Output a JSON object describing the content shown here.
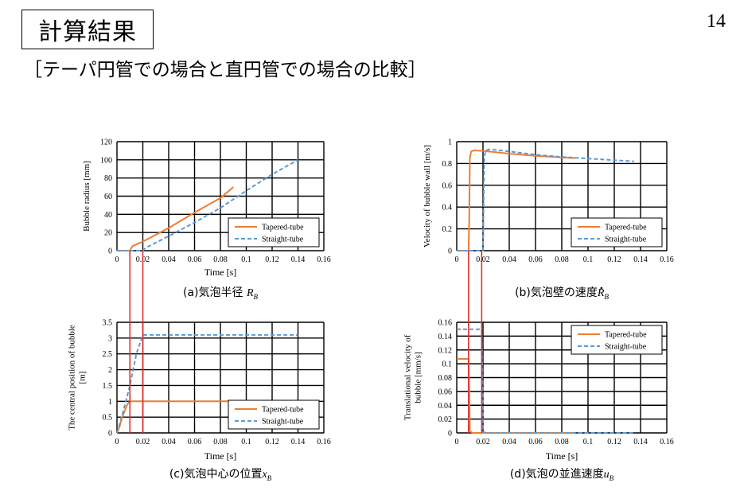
{
  "slide": {
    "title": "計算結果",
    "subtitle": "［テーパ円管での場合と直円管での場合の比較］",
    "page_number": "14"
  },
  "colors": {
    "tapered": "#ED7D31",
    "straight": "#5B9BD5",
    "connector": "#E03030",
    "grid": "#000000"
  },
  "chart_data": [
    {
      "id": "a",
      "type": "line",
      "caption": "(a)気泡半径 ",
      "caption_sym": "R",
      "caption_sub": "B",
      "caption_dot": false,
      "xlabel": "Time [s]",
      "ylabel": [
        "Bubble radius [mm]"
      ],
      "xlim": [
        0,
        0.16
      ],
      "ylim": [
        0,
        120
      ],
      "xticks": [
        "0",
        "0.02",
        "0.04",
        "0.06",
        "0.08",
        "0.1",
        "0.12",
        "0.14",
        "0.16"
      ],
      "yticks": [
        "0",
        "20",
        "40",
        "60",
        "80",
        "100",
        "120"
      ],
      "legend_pos": "bottom-right",
      "series": [
        {
          "name": "Tapered-tube",
          "style": "solid",
          "x": [
            0,
            0.01,
            0.011,
            0.012,
            0.02,
            0.04,
            0.06,
            0.08,
            0.09
          ],
          "y": [
            0,
            0,
            3,
            5,
            10,
            25,
            42,
            58,
            70
          ]
        },
        {
          "name": "Straight-tube",
          "style": "dashed",
          "x": [
            0,
            0.02,
            0.022,
            0.04,
            0.06,
            0.08,
            0.1,
            0.12,
            0.14
          ],
          "y": [
            0,
            0,
            3,
            16,
            31,
            47,
            66,
            84,
            100
          ]
        }
      ]
    },
    {
      "id": "b",
      "type": "line",
      "caption": "(b)気泡壁の速度",
      "caption_sym": "R",
      "caption_sub": "B",
      "caption_dot": true,
      "xlabel": "",
      "ylabel": [
        "Velocity of bubble wall [m/s]"
      ],
      "xlim": [
        0,
        0.16
      ],
      "ylim": [
        0,
        1
      ],
      "xticks": [
        "0",
        "0.02",
        "0.04",
        "0.06",
        "0.08",
        "0.1",
        "0.12",
        "0.14",
        "0.16"
      ],
      "yticks": [
        "0",
        "0.2",
        "0.4",
        "0.6",
        "0.8",
        "1"
      ],
      "legend_pos": "bottom-right",
      "series": [
        {
          "name": "Tapered-tube",
          "style": "solid",
          "x": [
            0,
            0.009,
            0.0095,
            0.01,
            0.011,
            0.013,
            0.02,
            0.04,
            0.06,
            0.08,
            0.09
          ],
          "y": [
            0,
            0,
            0.3,
            0.85,
            0.91,
            0.92,
            0.915,
            0.89,
            0.87,
            0.855,
            0.85
          ]
        },
        {
          "name": "Straight-tube",
          "style": "dashed",
          "x": [
            0,
            0.02,
            0.0205,
            0.021,
            0.022,
            0.025,
            0.04,
            0.06,
            0.08,
            0.1,
            0.12,
            0.135
          ],
          "y": [
            0,
            0,
            0.4,
            0.85,
            0.92,
            0.93,
            0.91,
            0.88,
            0.86,
            0.845,
            0.83,
            0.82
          ]
        }
      ]
    },
    {
      "id": "c",
      "type": "line",
      "caption": "(c)気泡中心の位置",
      "caption_sym": "x",
      "caption_sub": "B",
      "caption_dot": false,
      "xlabel": "Time [s]",
      "ylabel": [
        "The central position of bubble",
        "[m]"
      ],
      "xlim": [
        0,
        0.16
      ],
      "ylim": [
        0,
        3.5
      ],
      "xticks": [
        "0",
        "0.02",
        "0.04",
        "0.06",
        "0.08",
        "0.1",
        "0.12",
        "0.14",
        "0.16"
      ],
      "yticks": [
        "0",
        "0.5",
        "1",
        "1.5",
        "2",
        "2.5",
        "3",
        "3.5"
      ],
      "legend_pos": "bottom-right",
      "series": [
        {
          "name": "Tapered-tube",
          "style": "solid",
          "x": [
            0,
            0.002,
            0.004,
            0.006,
            0.008,
            0.01,
            0.03,
            0.06,
            0.09
          ],
          "y": [
            0,
            0.2,
            0.5,
            0.7,
            0.9,
            1.0,
            1.0,
            1.0,
            1.0
          ]
        },
        {
          "name": "Straight-tube",
          "style": "dashed",
          "x": [
            0,
            0.005,
            0.01,
            0.015,
            0.02,
            0.04,
            0.08,
            0.12,
            0.14
          ],
          "y": [
            0,
            0.7,
            1.5,
            2.5,
            3.1,
            3.1,
            3.1,
            3.1,
            3.1
          ]
        }
      ]
    },
    {
      "id": "d",
      "type": "line",
      "caption": "(d)気泡の並進速度",
      "caption_sym": "u",
      "caption_sub": "B",
      "caption_dot": false,
      "xlabel": "Time [s]",
      "ylabel": [
        "Translational velocity of",
        "bubble [mm/s]"
      ],
      "xlim": [
        0,
        0.16
      ],
      "ylim": [
        0,
        0.16
      ],
      "xticks": [
        "0",
        "0.02",
        "0.04",
        "0.06",
        "0.08",
        "0.1",
        "0.12",
        "0.14",
        "0.16"
      ],
      "yticks": [
        "0",
        "0.02",
        "0.04",
        "0.06",
        "0.08",
        "0.1",
        "0.12",
        "0.14",
        "0.16"
      ],
      "legend_pos": "top-right",
      "series": [
        {
          "name": "Tapered-tube",
          "style": "solid",
          "x": [
            0,
            0.009,
            0.0095,
            0.01,
            0.012,
            0.04,
            0.09
          ],
          "y": [
            0.107,
            0.107,
            0.06,
            0.003,
            0,
            0,
            0
          ]
        },
        {
          "name": "Straight-tube",
          "style": "dashed",
          "x": [
            0,
            0.019,
            0.0195,
            0.02,
            0.022,
            0.06,
            0.1,
            0.135
          ],
          "y": [
            0.15,
            0.15,
            0.08,
            0.002,
            0,
            0,
            0,
            0
          ]
        }
      ]
    }
  ],
  "connectors": [
    {
      "from_chart": 0,
      "to_chart": 2,
      "x": 0.01
    },
    {
      "from_chart": 0,
      "to_chart": 2,
      "x": 0.02
    },
    {
      "from_chart": 1,
      "to_chart": 3,
      "x": 0.009
    },
    {
      "from_chart": 1,
      "to_chart": 3,
      "x": 0.019
    }
  ]
}
